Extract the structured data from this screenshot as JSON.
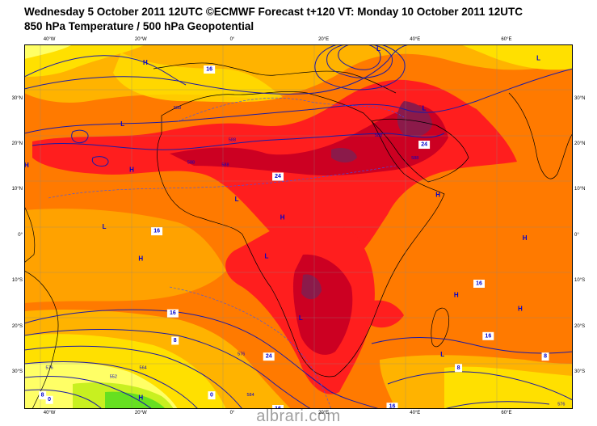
{
  "header": {
    "line1": "Wednesday 5 October 2011 12UTC ©ECMWF Forecast t+120 VT: Monday 10 October 2011 12UTC",
    "line2": "850 hPa Temperature / 500 hPa Geopotential"
  },
  "watermark": "albrari.com",
  "axes": {
    "lon_labels": [
      "40°W",
      "20°W",
      "0°",
      "20°E",
      "40°E",
      "60°E"
    ],
    "lat_labels_left": [
      "30°N",
      "20°N",
      "10°N",
      "0°",
      "10°S",
      "20°S",
      "30°S"
    ],
    "lat_labels_right": [
      "30°N",
      "20°N",
      "10°N",
      "0°",
      "10°S",
      "20°S",
      "30°S"
    ]
  },
  "colors": {
    "very_hot": "#8b1a4a",
    "hot_dark": "#cc0022",
    "hot": "#ff1e1e",
    "warm": "#ff7a00",
    "mild": "#ffb300",
    "cool": "#ffe000",
    "cooler": "#ffff66",
    "cold": "#c8f020",
    "colder": "#66e020",
    "contour": "#1a1aa6",
    "coast": "#000000"
  },
  "pressure_centers": [
    {
      "t": "H",
      "lon": -19,
      "lat": 38
    },
    {
      "t": "L",
      "lon": -24,
      "lat": 24.5
    },
    {
      "t": "H",
      "lon": -45,
      "lat": 15.5
    },
    {
      "t": "H",
      "lon": -22,
      "lat": 14.5
    },
    {
      "t": "L",
      "lon": 1,
      "lat": 8
    },
    {
      "t": "H",
      "lon": 11,
      "lat": 4
    },
    {
      "t": "L",
      "lon": -28,
      "lat": 2
    },
    {
      "t": "H",
      "lon": -20,
      "lat": -5
    },
    {
      "t": "H",
      "lon": -47,
      "lat": -6
    },
    {
      "t": "L",
      "lon": -49,
      "lat": -12
    },
    {
      "t": "L",
      "lon": 7.5,
      "lat": -4.5
    },
    {
      "t": "L",
      "lon": 15,
      "lat": -18
    },
    {
      "t": "H",
      "lon": 45,
      "lat": 9
    },
    {
      "t": "H",
      "lon": 64,
      "lat": -0.5
    },
    {
      "t": "H",
      "lon": 49,
      "lat": -13
    },
    {
      "t": "H",
      "lon": 63,
      "lat": -16
    },
    {
      "t": "H",
      "lon": 76,
      "lat": -13
    },
    {
      "t": "H",
      "lon": 75,
      "lat": 12
    },
    {
      "t": "L",
      "lon": 67,
      "lat": 39
    },
    {
      "t": "L",
      "lon": 42,
      "lat": 28
    },
    {
      "t": "L",
      "lon": 32,
      "lat": 41
    },
    {
      "t": "L",
      "lon": 46,
      "lat": -26
    },
    {
      "t": "H",
      "lon": -20,
      "lat": -35.5
    },
    {
      "t": "L",
      "lon": 0,
      "lat": -39
    }
  ],
  "isotherm_labels": [
    {
      "v": "16",
      "lon": -5,
      "lat": 36.5
    },
    {
      "v": "24",
      "lon": 10,
      "lat": 13
    },
    {
      "v": "24",
      "lon": 42,
      "lat": 20
    },
    {
      "v": "16",
      "lon": -16.5,
      "lat": 1
    },
    {
      "v": "16",
      "lon": -13,
      "lat": -17
    },
    {
      "v": "16",
      "lon": 54,
      "lat": -10.5
    },
    {
      "v": "16",
      "lon": 56,
      "lat": -22
    },
    {
      "v": "8",
      "lon": -12.5,
      "lat": -23
    },
    {
      "v": "8",
      "lon": 49.5,
      "lat": -29
    },
    {
      "v": "8",
      "lon": 68.5,
      "lat": -26.5
    },
    {
      "v": "24",
      "lon": 8,
      "lat": -26.5
    },
    {
      "v": "16",
      "lon": 10,
      "lat": -38
    },
    {
      "v": "16",
      "lon": 35,
      "lat": -37.5
    },
    {
      "v": "0",
      "lon": -4.5,
      "lat": -35
    },
    {
      "v": "0",
      "lon": -40,
      "lat": -36
    },
    {
      "v": "8",
      "lon": -41.5,
      "lat": -35
    }
  ],
  "geopotential_labels": [
    {
      "v": "588",
      "lon": 32,
      "lat": 22
    },
    {
      "v": "588",
      "lon": 0,
      "lat": 21
    },
    {
      "v": "588",
      "lon": -12,
      "lat": 28
    },
    {
      "v": "588",
      "lon": -9,
      "lat": 16
    },
    {
      "v": "588",
      "lon": 40,
      "lat": 17
    },
    {
      "v": "588",
      "lon": -1.5,
      "lat": 15.5
    },
    {
      "v": "576",
      "lon": 2,
      "lat": -26
    },
    {
      "v": "584",
      "lon": 4,
      "lat": -35
    },
    {
      "v": "552",
      "lon": -26,
      "lat": -31
    },
    {
      "v": "564",
      "lon": -19.5,
      "lat": -29
    },
    {
      "v": "576",
      "lon": -40,
      "lat": -29
    },
    {
      "v": "576",
      "lon": 72,
      "lat": -37
    }
  ]
}
